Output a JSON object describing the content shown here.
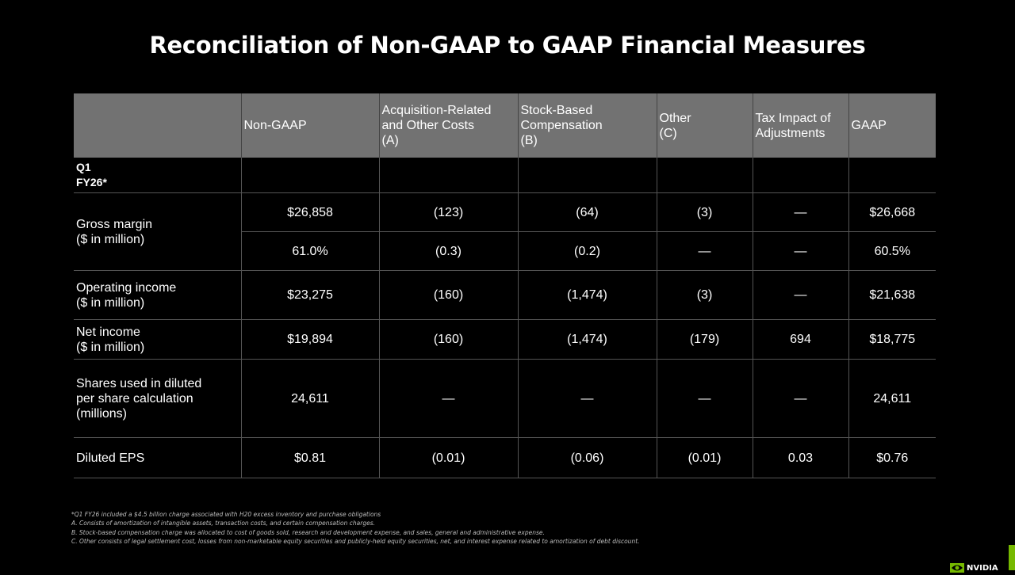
{
  "slide": {
    "title": "Reconciliation of Non-GAAP to GAAP Financial Measures",
    "brand_text": "NVIDIA",
    "accent_color": "#76b900",
    "header_bg": "#727272"
  },
  "table": {
    "columns": [
      "",
      "Non-GAAP",
      "Acquisition-Related\nand Other Costs\n(A)",
      "Stock-Based\nCompensation\n(B)",
      "Other\n(C)",
      "Tax Impact of\nAdjustments",
      "GAAP"
    ],
    "period_label": "Q1\nFY26*",
    "gross_margin_label": "Gross margin\n($ in million)",
    "rows": {
      "gm_dollars": [
        "$26,858",
        "(123)",
        "(64)",
        "(3)",
        "—",
        "$26,668"
      ],
      "gm_percent": [
        "61.0%",
        "(0.3)",
        "(0.2)",
        "—",
        "—",
        "60.5%"
      ],
      "operating_income": {
        "label": "Operating income\n($ in million)",
        "values": [
          "$23,275",
          "(160)",
          "(1,474)",
          "(3)",
          "—",
          "$21,638"
        ]
      },
      "net_income": {
        "label": "Net income\n($ in million)",
        "values": [
          "$19,894",
          "(160)",
          "(1,474)",
          "(179)",
          "694",
          "$18,775"
        ]
      },
      "shares": {
        "label": "Shares used in diluted\nper share calculation\n(millions)",
        "values": [
          "24,611",
          "—",
          "—",
          "—",
          "—",
          "24,611"
        ]
      },
      "eps": {
        "label": "Diluted EPS",
        "values": [
          "$0.81",
          "(0.01)",
          "(0.06)",
          "(0.01)",
          "0.03",
          "$0.76"
        ]
      }
    }
  },
  "footnotes": [
    "*Q1 FY26 included a $4.5 billion charge associated with H20 excess inventory and purchase obligations",
    "A.  Consists of amortization of intangible assets, transaction costs, and certain compensation charges.",
    "B.  Stock-based compensation charge was allocated to cost of goods sold, research and development expense, and sales, general and administrative expense.",
    "C.  Other consists of legal settlement cost, losses from non-marketable equity securities and publicly-held equity securities, net, and interest expense related to amortization of debt discount."
  ]
}
